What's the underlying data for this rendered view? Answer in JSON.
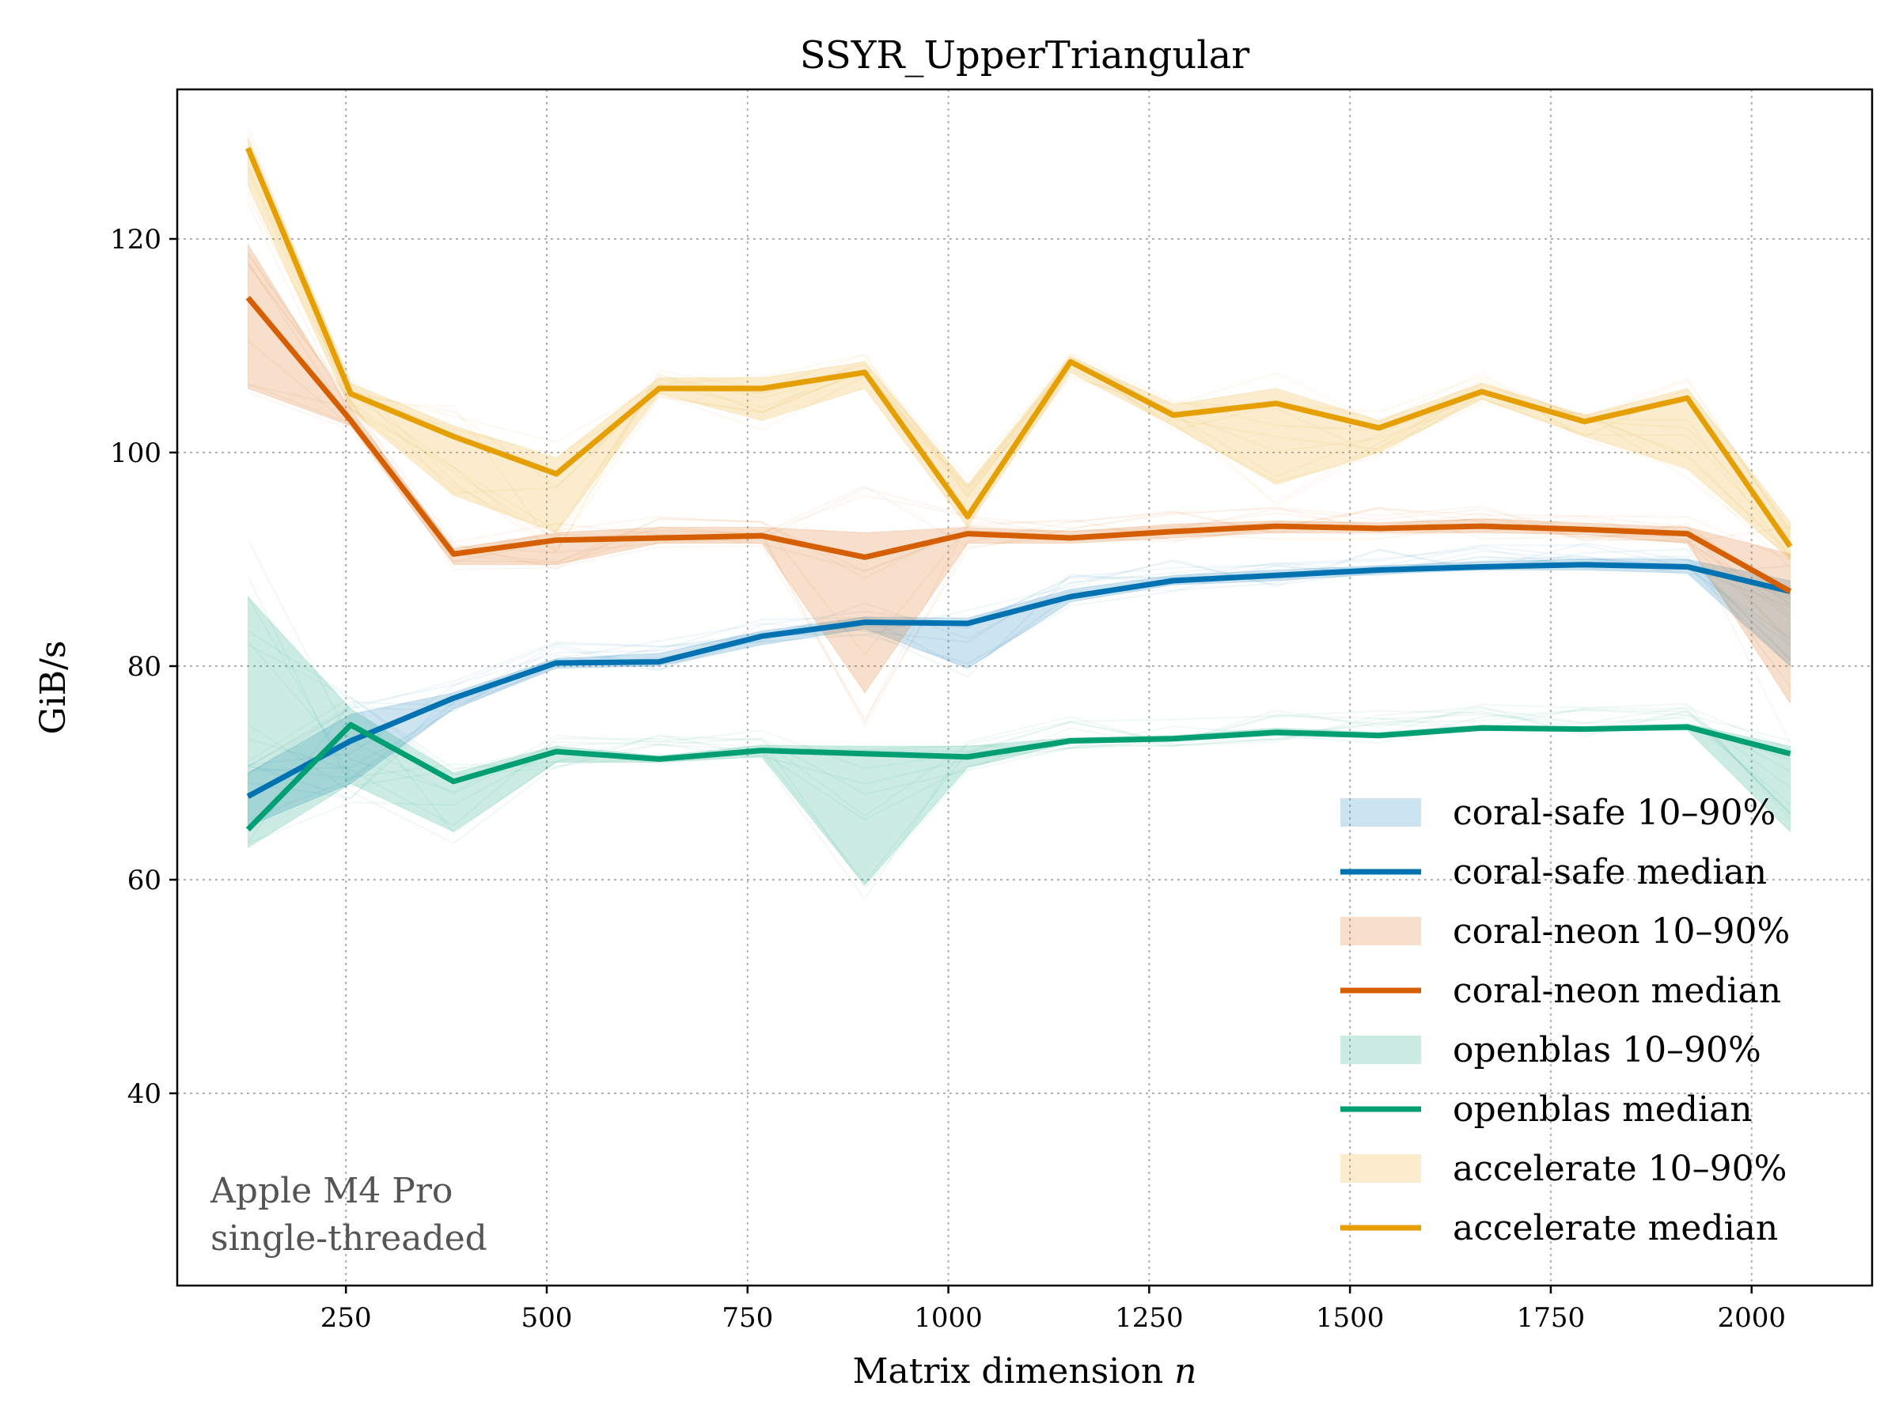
{
  "chart_data": {
    "type": "line",
    "title": "SSYR_UpperTriangular",
    "xlabel": "Matrix dimension",
    "xlabel_var": "n",
    "ylabel": "GiB/s",
    "xlim": [
      40,
      2150
    ],
    "ylim": [
      22,
      134
    ],
    "xticks": [
      250,
      500,
      750,
      1000,
      1250,
      1500,
      1750,
      2000
    ],
    "yticks": [
      40,
      60,
      80,
      100,
      120
    ],
    "grid": true,
    "legend_position": "lower-right",
    "annotation": [
      "Apple M4 Pro",
      "single-threaded"
    ],
    "x": [
      128,
      256,
      384,
      512,
      640,
      768,
      896,
      1024,
      1152,
      1280,
      1408,
      1536,
      1664,
      1792,
      1920,
      2048
    ],
    "series": [
      {
        "name": "coral-safe",
        "color": "#0072b2",
        "band_label": "coral-safe 10–90%",
        "median_label": "coral-safe median",
        "median": [
          67.8,
          73.0,
          77.0,
          80.3,
          80.4,
          82.8,
          84.1,
          84.0,
          86.5,
          88.0,
          88.5,
          89.0,
          89.3,
          89.5,
          89.3,
          87.0
        ],
        "p10": [
          65.0,
          69.0,
          76.0,
          79.8,
          80.0,
          82.0,
          83.5,
          79.8,
          86.0,
          87.6,
          88.0,
          88.6,
          89.0,
          89.0,
          88.7,
          80.0
        ],
        "p90": [
          70.0,
          75.5,
          77.5,
          80.7,
          81.2,
          83.3,
          84.6,
          84.5,
          87.2,
          88.5,
          89.0,
          89.4,
          89.8,
          90.0,
          90.0,
          88.0
        ]
      },
      {
        "name": "coral-neon",
        "color": "#d55e00",
        "band_label": "coral-neon 10–90%",
        "median_label": "coral-neon median",
        "median": [
          114.5,
          103.0,
          90.5,
          91.8,
          92.0,
          92.2,
          90.2,
          92.4,
          92.0,
          92.6,
          93.1,
          92.9,
          93.1,
          92.8,
          92.4,
          87.0
        ],
        "p10": [
          106.0,
          102.5,
          89.5,
          89.5,
          91.5,
          91.5,
          77.5,
          91.5,
          91.5,
          92.0,
          92.5,
          92.5,
          92.5,
          92.3,
          91.5,
          76.5
        ],
        "p90": [
          119.5,
          104.0,
          91.0,
          92.5,
          93.0,
          93.0,
          92.5,
          93.0,
          92.6,
          93.3,
          93.6,
          93.4,
          93.8,
          93.4,
          93.0,
          90.5
        ]
      },
      {
        "name": "openblas",
        "color": "#009e73",
        "band_label": "openblas 10–90%",
        "median_label": "openblas median",
        "median": [
          64.7,
          74.5,
          69.2,
          72.0,
          71.3,
          72.1,
          71.8,
          71.5,
          73.0,
          73.2,
          73.8,
          73.5,
          74.2,
          74.1,
          74.3,
          71.8
        ],
        "p10": [
          63.0,
          69.0,
          64.5,
          71.0,
          71.0,
          71.5,
          59.5,
          70.5,
          72.8,
          73.0,
          73.5,
          73.3,
          74.0,
          73.9,
          74.0,
          64.5
        ],
        "p90": [
          86.5,
          76.0,
          70.0,
          72.5,
          71.6,
          72.6,
          72.5,
          72.5,
          73.3,
          73.5,
          74.2,
          73.8,
          74.5,
          74.3,
          74.6,
          72.5
        ]
      },
      {
        "name": "accelerate",
        "color": "#e69f00",
        "band_label": "accelerate 10–90%",
        "median_label": "accelerate median",
        "median": [
          128.5,
          105.5,
          101.5,
          98.0,
          106.0,
          106.0,
          107.5,
          94.0,
          108.5,
          103.5,
          104.6,
          102.3,
          105.7,
          102.9,
          105.1,
          91.2
        ],
        "p10": [
          125.0,
          104.0,
          96.0,
          92.5,
          105.5,
          103.0,
          106.0,
          93.0,
          107.5,
          102.5,
          97.0,
          100.0,
          105.0,
          101.5,
          98.5,
          90.0
        ],
        "p90": [
          129.5,
          106.5,
          102.5,
          99.5,
          107.0,
          107.0,
          108.5,
          97.0,
          109.0,
          104.5,
          106.0,
          103.0,
          106.5,
          103.5,
          106.0,
          93.5
        ]
      }
    ]
  }
}
